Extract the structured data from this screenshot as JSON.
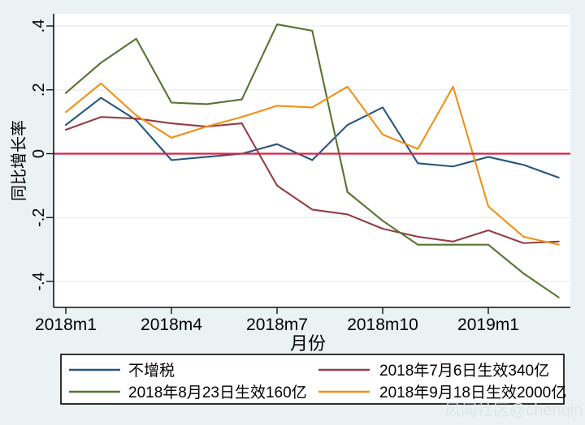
{
  "chart_data": {
    "type": "line",
    "title": "",
    "xlabel": "月份",
    "ylabel": "同比增长率",
    "x": [
      "2018m1",
      "2018m2",
      "2018m3",
      "2018m4",
      "2018m5",
      "2018m6",
      "2018m7",
      "2018m8",
      "2018m9",
      "2018m10",
      "2018m11",
      "2018m12",
      "2019m1",
      "2019m2",
      "2019m3"
    ],
    "x_ticks": [
      "2018m1",
      "2018m4",
      "2018m7",
      "2018m10",
      "2019m1"
    ],
    "y_ticks": [
      {
        "label": ".4",
        "value": 0.4
      },
      {
        "label": ".2",
        "value": 0.2
      },
      {
        "label": "0",
        "value": 0
      },
      {
        "label": "-.2",
        "value": -0.2
      },
      {
        "label": "-.4",
        "value": -0.4
      }
    ],
    "ylim": [
      -0.49,
      0.45
    ],
    "grid": true,
    "legend_position": "bottom",
    "ref_line": {
      "value": 0,
      "color": "#dc2048"
    },
    "series": [
      {
        "name": "不增税",
        "color": "#26567e",
        "values": [
          0.09,
          0.175,
          0.105,
          -0.02,
          -0.01,
          0.0,
          0.03,
          -0.02,
          0.09,
          0.145,
          -0.03,
          -0.04,
          -0.01,
          -0.035,
          -0.075
        ]
      },
      {
        "name": "2018年7月6日生效340亿",
        "color": "#943e44",
        "values": [
          0.075,
          0.115,
          0.11,
          0.095,
          0.085,
          0.095,
          -0.1,
          -0.175,
          -0.19,
          -0.235,
          -0.26,
          -0.275,
          -0.24,
          -0.28,
          -0.275
        ]
      },
      {
        "name": "2018年8月23日生效160亿",
        "color": "#567430",
        "values": [
          0.19,
          0.285,
          0.36,
          0.16,
          0.155,
          0.17,
          0.405,
          0.385,
          -0.12,
          -0.21,
          -0.285,
          -0.285,
          -0.285,
          -0.375,
          -0.45
        ]
      },
      {
        "name": "2018年9月18日生效2000亿",
        "color": "#f09118",
        "values": [
          0.13,
          0.22,
          0.12,
          0.05,
          0.085,
          0.115,
          0.15,
          0.145,
          0.21,
          0.06,
          0.015,
          0.21,
          -0.165,
          -0.26,
          -0.285
        ]
      }
    ],
    "colors": {
      "background": "#eaf2f3",
      "plot_background": "#ffffff",
      "gridline": "#e4edf0",
      "axis": "#111111"
    }
  },
  "watermark": "风闻社区@chenqin"
}
